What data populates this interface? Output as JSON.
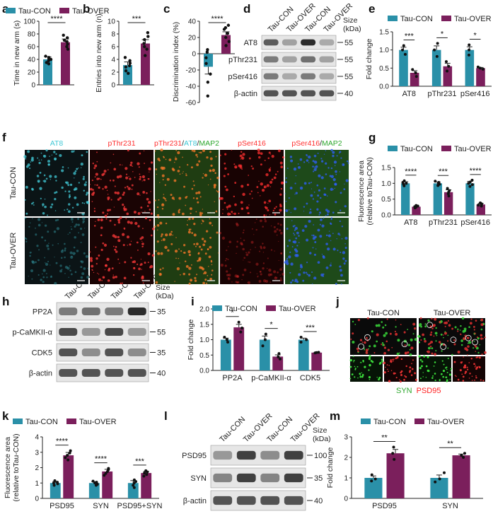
{
  "colors": {
    "con": "#2a90a8",
    "over": "#7b1f5c",
    "wb_bg": "#e6e6e6",
    "band": "#222222"
  },
  "panel_letters": {
    "a": "a",
    "b": "b",
    "c": "c",
    "d": "d",
    "e": "e",
    "f": "f",
    "g": "g",
    "h": "h",
    "i": "i",
    "j": "j",
    "k": "k",
    "l": "l",
    "m": "m"
  },
  "legend": {
    "con": "Tau-CON",
    "over": "Tau-OVER"
  },
  "chart_data": [
    {
      "panel": "a",
      "type": "bar",
      "ylabel": "Time in new arm (s)",
      "ylim": [
        0,
        100
      ],
      "yticks": [
        "0",
        "20",
        "40",
        "60",
        "80",
        "100"
      ],
      "categories": [
        "Tau-CON",
        "Tau-OVER"
      ],
      "values": [
        40,
        67
      ],
      "errors": [
        4,
        5
      ],
      "points": [
        [
          33,
          35,
          38,
          40,
          41,
          43,
          45
        ],
        [
          56,
          60,
          64,
          68,
          70,
          74,
          78
        ]
      ],
      "sig": [
        "****"
      ]
    },
    {
      "panel": "b",
      "type": "bar",
      "ylabel": "Entries into new arm (n)",
      "ylim": [
        0,
        10
      ],
      "yticks": [
        "0",
        "2",
        "4",
        "6",
        "8",
        "10"
      ],
      "categories": [
        "Tau-CON",
        "Tau-OVER"
      ],
      "values": [
        3.1,
        6.5
      ],
      "errors": [
        0.5,
        0.6
      ],
      "points": [
        [
          1.8,
          2.2,
          2.8,
          3.0,
          3.4,
          3.8,
          4.3
        ],
        [
          4.6,
          5.6,
          6.0,
          6.5,
          7.1,
          7.6,
          8.2
        ]
      ],
      "sig": [
        "***"
      ]
    },
    {
      "panel": "c",
      "type": "bar",
      "ylabel": "Discrimination index (%)",
      "ylim": [
        -60,
        40
      ],
      "yticks": [
        "-60",
        "-40",
        "-20",
        "0",
        "20",
        "40"
      ],
      "categories": [
        "Tau-CON",
        "Tau-OVER"
      ],
      "values": [
        -16,
        23
      ],
      "errors": [
        9,
        4
      ],
      "points": [
        [
          -52,
          -35,
          -25,
          -12,
          -5,
          2,
          5
        ],
        [
          10,
          15,
          20,
          25,
          30,
          32,
          35
        ]
      ],
      "sig": [
        "****"
      ]
    },
    {
      "panel": "e",
      "type": "bar",
      "ylabel": "Fold change",
      "ylim": [
        0,
        1.5
      ],
      "yticks": [
        "0.0",
        "0.5",
        "1.0",
        "1.5"
      ],
      "categories": [
        "AT8",
        "pThr231",
        "pSer416"
      ],
      "series": [
        {
          "name": "Tau-CON",
          "values": [
            1.0,
            1.0,
            1.0
          ]
        },
        {
          "name": "Tau-OVER",
          "values": [
            0.37,
            0.55,
            0.5
          ]
        }
      ],
      "points": [
        [
          [
            0.88,
            1.0,
            1.12
          ],
          [
            0.27,
            0.37,
            0.46
          ]
        ],
        [
          [
            0.82,
            1.0,
            1.18
          ],
          [
            0.42,
            0.55,
            0.68
          ]
        ],
        [
          [
            0.86,
            1.0,
            1.14
          ],
          [
            0.47,
            0.5,
            0.53
          ]
        ]
      ],
      "sig": [
        "***",
        "*",
        "*"
      ]
    },
    {
      "panel": "g",
      "type": "bar",
      "ylabel": "Fluorescence area\n(relative toTau-CON)",
      "ylim": [
        0,
        1.5
      ],
      "yticks": [
        "0.0",
        "0.5",
        "1.0",
        "1.5"
      ],
      "categories": [
        "AT8",
        "pThr231",
        "pSer416"
      ],
      "series": [
        {
          "name": "Tau-CON",
          "values": [
            1.0,
            1.0,
            1.0
          ]
        },
        {
          "name": "Tau-OVER",
          "values": [
            0.26,
            0.72,
            0.33
          ]
        }
      ],
      "points": [
        [
          [
            0.92,
            0.97,
            1.0,
            1.03,
            1.08
          ],
          [
            0.22,
            0.24,
            0.26,
            0.28,
            0.3
          ]
        ],
        [
          [
            0.93,
            0.97,
            1.0,
            1.03,
            1.07
          ],
          [
            0.6,
            0.67,
            0.72,
            0.77,
            0.84
          ]
        ],
        [
          [
            0.9,
            0.96,
            1.0,
            1.04,
            1.1
          ],
          [
            0.28,
            0.31,
            0.33,
            0.35,
            0.38
          ]
        ]
      ],
      "sig": [
        "****",
        "***",
        "****"
      ]
    },
    {
      "panel": "i",
      "type": "bar",
      "ylabel": "Fold change",
      "ylim": [
        0,
        2.0
      ],
      "yticks": [
        "0.0",
        "0.5",
        "1.0",
        "1.5",
        "2.0"
      ],
      "categories": [
        "PP2A",
        "p-CaMKII-α",
        "CDK5"
      ],
      "series": [
        {
          "name": "Tau-CON",
          "values": [
            1.0,
            1.0,
            1.0
          ]
        },
        {
          "name": "Tau-OVER",
          "values": [
            1.4,
            0.45,
            0.58
          ]
        }
      ],
      "points": [
        [
          [
            0.92,
            1.0,
            1.08
          ],
          [
            1.25,
            1.38,
            1.57
          ]
        ],
        [
          [
            0.8,
            1.0,
            1.18
          ],
          [
            0.37,
            0.44,
            0.55
          ]
        ],
        [
          [
            0.92,
            1.0,
            1.08
          ],
          [
            0.57,
            0.58,
            0.59
          ]
        ]
      ],
      "sig": [
        "*",
        "*",
        "***"
      ]
    },
    {
      "panel": "k",
      "type": "bar",
      "ylabel": "Fluorescence area\n(relative toTau-CON)",
      "ylim": [
        0,
        4
      ],
      "yticks": [
        "0",
        "1",
        "2",
        "3",
        "4"
      ],
      "categories": [
        "PSD95",
        "SYN",
        "PSD95+SYN"
      ],
      "series": [
        {
          "name": "Tau-CON",
          "values": [
            1.0,
            1.0,
            1.0
          ]
        },
        {
          "name": "Tau-OVER",
          "values": [
            2.8,
            1.75,
            1.65
          ]
        }
      ],
      "points": [
        [
          [
            0.85,
            0.95,
            1.0,
            1.05,
            1.15
          ],
          [
            2.5,
            2.65,
            2.8,
            2.95,
            3.1
          ]
        ],
        [
          [
            0.85,
            0.92,
            1.0,
            1.05,
            1.12
          ],
          [
            1.5,
            1.62,
            1.75,
            1.85,
            1.95
          ]
        ],
        [
          [
            0.7,
            0.85,
            1.0,
            1.1,
            1.2
          ],
          [
            1.45,
            1.55,
            1.65,
            1.72,
            1.8
          ]
        ]
      ],
      "sig": [
        "****",
        "****",
        "***"
      ]
    },
    {
      "panel": "m",
      "type": "bar",
      "ylabel": "Fold change",
      "ylim": [
        0,
        3
      ],
      "yticks": [
        "0",
        "1",
        "2",
        "3"
      ],
      "categories": [
        "PSD95",
        "SYN"
      ],
      "series": [
        {
          "name": "Tau-CON",
          "values": [
            1.0,
            1.0
          ]
        },
        {
          "name": "Tau-OVER",
          "values": [
            2.2,
            2.1
          ]
        }
      ],
      "points": [
        [
          [
            0.85,
            0.95,
            1.15
          ],
          [
            1.9,
            2.2,
            2.5
          ]
        ],
        [
          [
            0.8,
            0.95,
            1.25
          ],
          [
            2.0,
            2.1,
            2.2
          ]
        ]
      ],
      "sig": [
        "**",
        "**"
      ]
    }
  ],
  "blots": {
    "d": {
      "lanes": [
        "Tau-CON",
        "Tau-OVER",
        "Tau-CON",
        "Tau-OVER"
      ],
      "size_label": "Size\n(kDa)",
      "rows": [
        {
          "label": "AT8",
          "kda": "55",
          "int": [
            0.7,
            0.35,
            0.95,
            0.3
          ]
        },
        {
          "label": "pThr231",
          "kda": "55",
          "int": [
            0.55,
            0.35,
            0.6,
            0.35
          ]
        },
        {
          "label": "pSer416",
          "kda": "55",
          "int": [
            0.55,
            0.3,
            0.55,
            0.3
          ]
        },
        {
          "label": "β-actin",
          "kda": "40",
          "int": [
            0.75,
            0.75,
            0.75,
            0.75
          ]
        }
      ]
    },
    "h": {
      "lanes": [
        "Tau-CON",
        "Tau-OVER",
        "Tau-CON",
        "Tau-OVER"
      ],
      "size_label": "Size\n(kDa)",
      "rows": [
        {
          "label": "PP2A",
          "kda": "35",
          "int": [
            0.55,
            0.6,
            0.55,
            0.95
          ]
        },
        {
          "label": "p-CaMKII-α",
          "kda": "55",
          "int": [
            0.8,
            0.4,
            0.8,
            0.4
          ]
        },
        {
          "label": "CDK5",
          "kda": "35",
          "int": [
            0.75,
            0.45,
            0.75,
            0.45
          ]
        },
        {
          "label": "β-actin",
          "kda": "40",
          "int": [
            0.75,
            0.75,
            0.75,
            0.75
          ]
        }
      ]
    },
    "l": {
      "lanes": [
        "Tau-CON",
        "Tau-OVER",
        "Tau-CON",
        "Tau-OVER"
      ],
      "size_label": "Size\n(kDa)",
      "rows": [
        {
          "label": "PSD95",
          "kda": "100",
          "int": [
            0.4,
            0.85,
            0.45,
            0.85
          ]
        },
        {
          "label": "SYN",
          "kda": "35",
          "int": [
            0.5,
            0.85,
            0.5,
            0.85
          ]
        },
        {
          "label": "β-actin",
          "kda": "40",
          "int": [
            0.75,
            0.75,
            0.75,
            0.75
          ]
        }
      ]
    }
  },
  "micrographs": {
    "f": {
      "columns": [
        {
          "parts": [
            {
              "text": "AT8",
              "color": "#41c8d6"
            }
          ]
        },
        {
          "parts": [
            {
              "text": "pThr231",
              "color": "#ff3030"
            }
          ]
        },
        {
          "parts": [
            {
              "text": "pThr231",
              "color": "#ff3030"
            },
            {
              "text": "/",
              "color": "#222"
            },
            {
              "text": "AT8",
              "color": "#41c8d6"
            },
            {
              "text": "/",
              "color": "#222"
            },
            {
              "text": "MAP2",
              "color": "#2ea82e"
            }
          ]
        },
        {
          "parts": [
            {
              "text": "pSer416",
              "color": "#ff3030"
            }
          ]
        },
        {
          "parts": [
            {
              "text": "pSer416",
              "color": "#ff3030"
            },
            {
              "text": "/",
              "color": "#222"
            },
            {
              "text": "MAP2",
              "color": "#2ea82e"
            }
          ]
        }
      ],
      "rows": [
        "Tau-CON",
        "Tau-OVER"
      ]
    },
    "j": {
      "columns": [
        "Tau-CON",
        "Tau-OVER"
      ],
      "labels": [
        {
          "text": "SYN",
          "color": "#2ea82e"
        },
        {
          "text": "PSD95",
          "color": "#ff2020"
        }
      ]
    }
  }
}
